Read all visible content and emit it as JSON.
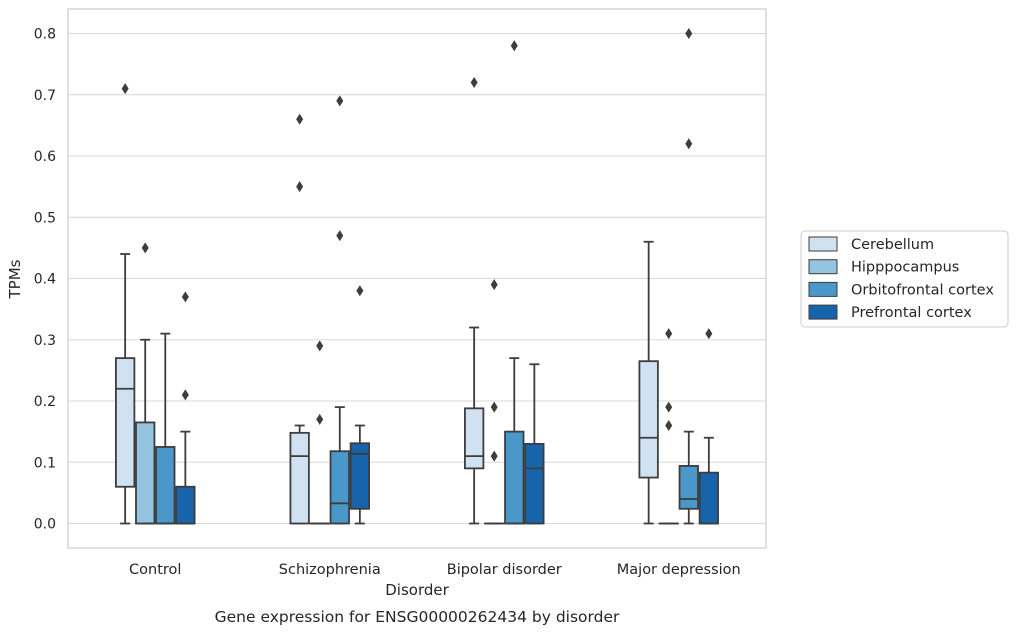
{
  "chart_data": {
    "type": "box",
    "title": "",
    "caption": "Gene expression for ENSG00000262434 by disorder",
    "xlabel": "Disorder",
    "ylabel": "TPMs",
    "ylim": [
      -0.04,
      0.84
    ],
    "yticks": [
      "0.0",
      "0.1",
      "0.2",
      "0.3",
      "0.4",
      "0.5",
      "0.6",
      "0.7",
      "0.8"
    ],
    "categories": [
      "Control",
      "Schizophrenia",
      "Bipolar disorder",
      "Major depression"
    ],
    "grid": true,
    "legend_position": "right",
    "series": [
      {
        "name": "Cerebellum",
        "color": "#d0e1f2",
        "boxes": [
          {
            "whislo": 0.0,
            "q1": 0.06,
            "med": 0.22,
            "q3": 0.27,
            "whishi": 0.44,
            "fliers": [
              0.71
            ]
          },
          {
            "whislo": 0.0,
            "q1": 0.0,
            "med": 0.11,
            "q3": 0.148,
            "whishi": 0.16,
            "fliers": [
              0.55,
              0.66
            ]
          },
          {
            "whislo": 0.0,
            "q1": 0.09,
            "med": 0.11,
            "q3": 0.188,
            "whishi": 0.32,
            "fliers": [
              0.72
            ]
          },
          {
            "whislo": 0.0,
            "q1": 0.075,
            "med": 0.14,
            "q3": 0.265,
            "whishi": 0.46,
            "fliers": []
          }
        ]
      },
      {
        "name": "Hipppocampus",
        "color": "#94c4df",
        "boxes": [
          {
            "whislo": 0.0,
            "q1": 0.0,
            "med": 0.0,
            "q3": 0.165,
            "whishi": 0.3,
            "fliers": [
              0.45
            ]
          },
          {
            "whislo": 0.0,
            "q1": 0.0,
            "med": 0.0,
            "q3": 0.0,
            "whishi": 0.0,
            "fliers": [
              0.17,
              0.29
            ]
          },
          {
            "whislo": 0.0,
            "q1": 0.0,
            "med": 0.0,
            "q3": 0.0,
            "whishi": 0.0,
            "fliers": [
              0.11,
              0.19,
              0.39
            ]
          },
          {
            "whislo": 0.0,
            "q1": 0.0,
            "med": 0.0,
            "q3": 0.0,
            "whishi": 0.0,
            "fliers": [
              0.16,
              0.19,
              0.31
            ]
          }
        ]
      },
      {
        "name": "Orbitofrontal cortex",
        "color": "#4a98c9",
        "boxes": [
          {
            "whislo": 0.0,
            "q1": 0.0,
            "med": 0.0,
            "q3": 0.125,
            "whishi": 0.31,
            "fliers": []
          },
          {
            "whislo": 0.0,
            "q1": 0.0,
            "med": 0.033,
            "q3": 0.118,
            "whishi": 0.19,
            "fliers": [
              0.47,
              0.69
            ]
          },
          {
            "whislo": 0.0,
            "q1": 0.0,
            "med": 0.0,
            "q3": 0.15,
            "whishi": 0.27,
            "fliers": [
              0.78
            ]
          },
          {
            "whislo": 0.0,
            "q1": 0.024,
            "med": 0.04,
            "q3": 0.094,
            "whishi": 0.15,
            "fliers": [
              0.62,
              0.8
            ]
          }
        ]
      },
      {
        "name": "Prefrontal cortex",
        "color": "#1764ab",
        "boxes": [
          {
            "whislo": 0.0,
            "q1": 0.0,
            "med": 0.0,
            "q3": 0.06,
            "whishi": 0.15,
            "fliers": [
              0.21,
              0.37
            ]
          },
          {
            "whislo": 0.0,
            "q1": 0.024,
            "med": 0.114,
            "q3": 0.131,
            "whishi": 0.16,
            "fliers": [
              0.38
            ]
          },
          {
            "whislo": 0.0,
            "q1": 0.0,
            "med": 0.09,
            "q3": 0.13,
            "whishi": 0.26,
            "fliers": []
          },
          {
            "whislo": 0.0,
            "q1": 0.0,
            "med": 0.0,
            "q3": 0.083,
            "whishi": 0.14,
            "fliers": [
              0.31
            ]
          }
        ]
      }
    ]
  }
}
